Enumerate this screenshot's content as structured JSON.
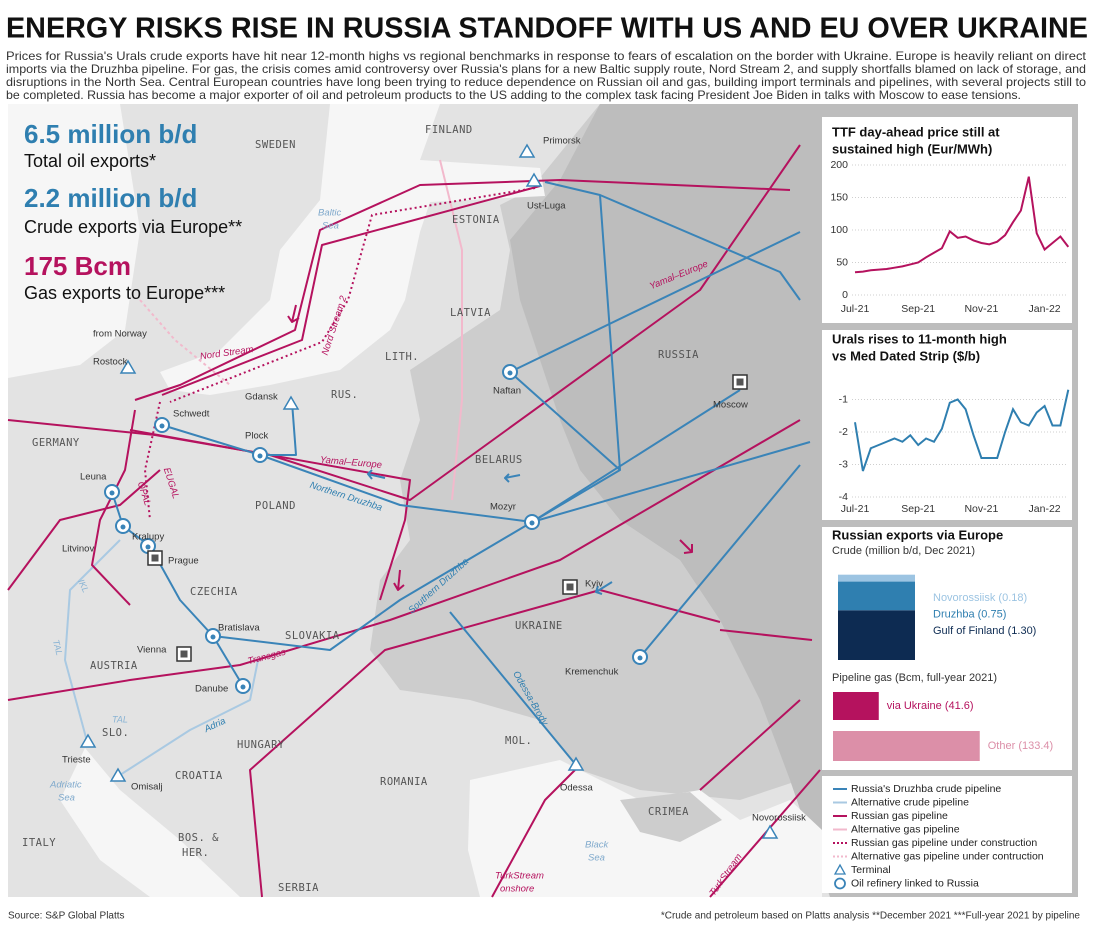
{
  "header": {
    "title": "ENERGY RISKS RISE IN RUSSIA STANDOFF WITH US AND EU OVER UKRAINE",
    "subtitle": [
      "Prices for Russia's Urals crude exports have hit near 12-month highs vs regional benchmarks in response to fears of escalation on the border with Ukraine. Europe is heavily reliant on direct",
      "imports via the Druzhba pipeline. For gas, the crisis comes amid controversy over Russia's plans for a new Baltic supply route, Nord Stream 2, and supply shortfalls blamed on lack of storage, and",
      "disruptions in the North Sea. Central European countries have long been trying to reduce dependence on Russian oil and gas, building import terminals and pipelines, with several projects still to",
      "be completed. Russia has become a major exporter of oil and petroleum products to the US adding to the complex task facing President Joe Biden in talks with Moscow to ease tensions."
    ]
  },
  "stats": [
    {
      "value": "6.5 million b/d",
      "label": "Total oil exports*"
    },
    {
      "value": "2.2 million b/d",
      "label": "Crude exports via Europe**"
    },
    {
      "value": "175 Bcm",
      "label": "Gas exports to Europe***"
    }
  ],
  "map": {
    "labels": [
      "SWEDEN",
      "FINLAND",
      "ESTONIA",
      "LATVIA",
      "LITH.",
      "RUS.",
      "GERMANY",
      "POLAND",
      "BELARUS",
      "RUSSIA",
      "CZECHIA",
      "SLOVAKIA",
      "UKRAINE",
      "AUSTRIA",
      "HUNGARY",
      "SLO.",
      "CROATIA",
      "ROMANIA",
      "MOL.",
      "CRIMEA",
      "BOS. &",
      "HER.",
      "ITALY",
      "SERBIA",
      "Baltic",
      "Sea",
      "Adriatic",
      "Sea",
      "Black",
      "Sea",
      "Primorsk",
      "Ust-Luga",
      "Rostock",
      "from Norway",
      "Gdansk",
      "Schwedt",
      "Plock",
      "Naftan",
      "Moscow",
      "Leuna",
      "Kralupy",
      "Litvinov",
      "Prague",
      "Mozyr",
      "Kyiv",
      "Bratislava",
      "Vienna",
      "Danube",
      "Trieste",
      "Omisalj",
      "Kremenchuk",
      "Odessa",
      "Novorossiisk",
      "Nord Stream",
      "Nord Stream 2",
      "Yamal–Europe",
      "Yamal–Europe",
      "Northern Druzhba",
      "Southern Druzhba",
      "EUGAL",
      "OPAL",
      "Transgas",
      "Adria",
      "Odessa-Brody",
      "TurkStream",
      "onshore",
      "TurkStream",
      "IKL",
      "TAL",
      "TAL"
    ]
  },
  "chart_data": [
    {
      "type": "line",
      "title": [
        "TTF day-ahead price still at",
        "sustained high (Eur/MWh)"
      ],
      "categories": [
        "Jul-21",
        null,
        null,
        null,
        null,
        null,
        null,
        null,
        "Sep-21",
        null,
        null,
        null,
        null,
        null,
        null,
        null,
        "Nov-21",
        null,
        null,
        null,
        null,
        null,
        null,
        null,
        "Jan-22",
        null,
        null,
        null
      ],
      "values": [
        35,
        36,
        38,
        39,
        40,
        42,
        44,
        47,
        50,
        58,
        65,
        72,
        98,
        88,
        90,
        84,
        80,
        78,
        82,
        92,
        112,
        130,
        182,
        95,
        70,
        80,
        90,
        74
      ],
      "color": "#b5125e",
      "ylim": [
        0,
        200
      ],
      "yticks": [
        0,
        50,
        100,
        150,
        200
      ],
      "grid": true
    },
    {
      "type": "line",
      "title": [
        "Urals rises to 11-month high",
        "vs Med Dated Strip ($/b)"
      ],
      "categories": [
        "Jul-21",
        null,
        null,
        null,
        null,
        null,
        null,
        null,
        "Sep-21",
        null,
        null,
        null,
        null,
        null,
        null,
        null,
        "Nov-21",
        null,
        null,
        null,
        null,
        null,
        null,
        null,
        "Jan-22",
        null,
        null,
        null
      ],
      "values": [
        -1.7,
        -3.2,
        -2.5,
        -2.4,
        -2.3,
        -2.2,
        -2.3,
        -2.1,
        -2.4,
        -2.2,
        -2.3,
        -1.9,
        -1.1,
        -1.0,
        -1.3,
        -2.1,
        -2.8,
        -2.8,
        -2.8,
        -2.0,
        -1.3,
        -1.7,
        -1.8,
        -1.4,
        -1.2,
        -1.8,
        -1.8,
        -0.7
      ],
      "color": "#2f7fb0",
      "ylim": [
        -4,
        0
      ],
      "yticks": [
        -4,
        -3,
        -2,
        -1
      ],
      "grid": true
    },
    {
      "type": "stacked-bar",
      "title": "Russian exports via Europe",
      "subtitle": "Crude (million b/d, Dec 2021)",
      "series": [
        {
          "name": "Gulf of Finland",
          "color": "#0d2b52",
          "values": [
            1.3
          ],
          "value_labels": [
            "(1.30)"
          ]
        },
        {
          "name": "Druzhba",
          "color": "#2f7fb0",
          "values": [
            0.75
          ],
          "value_labels": [
            "(0.75)"
          ]
        },
        {
          "name": "Novorossiisk",
          "color": "#9cc4e2",
          "values": [
            0.18
          ],
          "value_labels": [
            "(0.18)"
          ]
        }
      ],
      "ylim": [
        0,
        2.3
      ]
    },
    {
      "type": "hbar",
      "title": "Pipeline gas (Bcm, full-year 2021)",
      "categories": [
        "via Ukraine",
        "Other"
      ],
      "values": [
        41.6,
        133.4
      ],
      "value_labels": [
        "(41.6)",
        "(133.4)"
      ],
      "colors": [
        "#b5125e",
        "#dc8fa8"
      ],
      "xlim": [
        0,
        140
      ]
    }
  ],
  "legend": {
    "items": [
      "Russia's Druzhba crude pipeline",
      "Alternative crude pipeline",
      "Russian gas pipeline",
      "Alternative gas pipeline",
      "Russian gas pipeline under construction",
      "Alternative gas pipeline  under contruction",
      "Terminal",
      "Oil refinery linked to Russia"
    ]
  },
  "footer": {
    "source": "Source: S&P Global Platts",
    "notes": "*Crude and petroleum based on Platts analysis **December 2021  ***Full-year 2021 by pipeline"
  }
}
